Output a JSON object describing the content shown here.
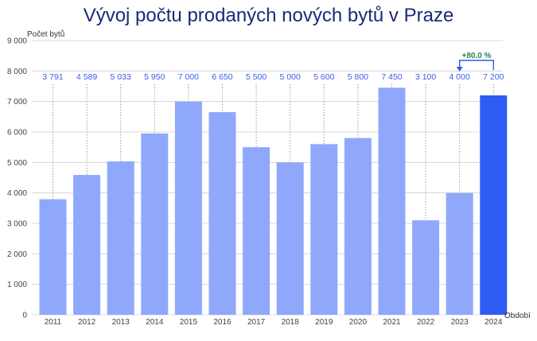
{
  "chart_data": {
    "type": "bar",
    "title": "Vývoj počtu prodaných nových bytů v Praze",
    "ylabel": "Počet bytů",
    "xlabel": "Období",
    "ylim": [
      0,
      9000
    ],
    "yticks": [
      0,
      1000,
      2000,
      3000,
      4000,
      5000,
      6000,
      7000,
      8000,
      9000
    ],
    "ytick_labels": [
      "0",
      "1 000",
      "2 000",
      "3 000",
      "4 000",
      "5 000",
      "6 000",
      "7 000",
      "8 000",
      "9 000"
    ],
    "categories": [
      "2011",
      "2012",
      "2013",
      "2014",
      "2015",
      "2016",
      "2017",
      "2018",
      "2019",
      "2020",
      "2021",
      "2022",
      "2023",
      "2024"
    ],
    "values": [
      3791,
      4589,
      5033,
      5950,
      7000,
      6650,
      5500,
      5000,
      5600,
      5800,
      7450,
      3100,
      4000,
      7200
    ],
    "value_labels": [
      "3 791",
      "4 589",
      "5 033",
      "5 950",
      "7 000",
      "6 650",
      "5 500",
      "5 000",
      "5 600",
      "5 800",
      "7 450",
      "3 100",
      "4 000",
      "7 200"
    ],
    "highlight_index": 13,
    "annotation": {
      "text": "+80.0 %",
      "from_index": 12,
      "to_index": 13
    },
    "colors": {
      "bar": "#8fa8fb",
      "highlight": "#2f5cf5",
      "label": "#3a5ee8",
      "annotation_line": "#2f5cf5",
      "annotation_text": "#1f8a4c",
      "dotted": "#999999",
      "grid": "#cfcfcf"
    }
  }
}
